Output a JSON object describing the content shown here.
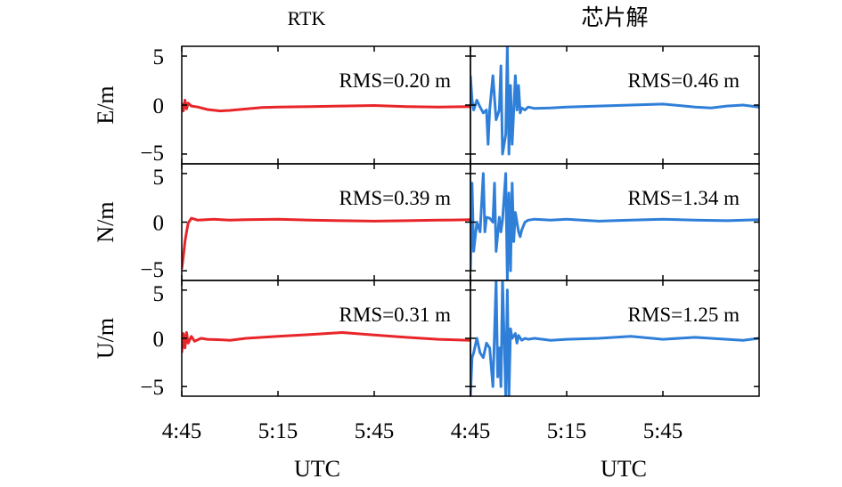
{
  "chart_data": {
    "type": "line",
    "columns": [
      {
        "title": "RTK",
        "xlabel": "UTC",
        "color": "#e8262a"
      },
      {
        "title": "芯片解",
        "xlabel": "UTC",
        "color": "#2f7fd9"
      }
    ],
    "rows": [
      {
        "ylabel": "E/m"
      },
      {
        "ylabel": "N/m"
      },
      {
        "ylabel": "U/m"
      }
    ],
    "x_ticks": [
      "4:45",
      "5:15",
      "5:45"
    ],
    "x_tick_values": [
      0,
      30,
      60
    ],
    "xlim": [
      0,
      90
    ],
    "ylim": [
      -6,
      6
    ],
    "y_ticks": [
      5,
      0,
      -5
    ],
    "y_tick_labels": [
      "5",
      "0",
      "−5"
    ],
    "panels": [
      {
        "row": 0,
        "col": 0,
        "rms_label": "RMS=0.20 m",
        "x": [
          0,
          0.5,
          1,
          1.5,
          2,
          3,
          5,
          8,
          12,
          15,
          20,
          25,
          30,
          40,
          50,
          60,
          70,
          80,
          90
        ],
        "y": [
          0.2,
          -0.6,
          0.5,
          -0.4,
          0.2,
          -0.1,
          -0.2,
          -0.45,
          -0.6,
          -0.55,
          -0.4,
          -0.25,
          -0.2,
          -0.15,
          -0.1,
          -0.05,
          -0.15,
          -0.2,
          -0.15
        ]
      },
      {
        "row": 0,
        "col": 1,
        "rms_label": "RMS=0.46 m",
        "x": [
          0,
          0.5,
          1,
          2,
          3,
          4,
          5,
          5.5,
          6,
          7,
          8,
          9,
          9.5,
          10,
          11,
          11.5,
          12,
          12.5,
          13,
          14,
          14.5,
          15,
          15.5,
          16,
          17,
          18,
          20,
          25,
          30,
          40,
          50,
          60,
          70,
          75,
          80,
          85,
          90
        ],
        "y": [
          3,
          0.5,
          -0.5,
          0.5,
          -0.2,
          -0.8,
          -0.5,
          -4,
          -0.5,
          3,
          -1.5,
          -0.5,
          4,
          -5,
          -3,
          6,
          -5,
          2,
          -4,
          3,
          -0.5,
          2,
          -0.8,
          -0.3,
          -0.5,
          -0.2,
          -0.35,
          -0.3,
          -0.2,
          -0.1,
          0,
          0.1,
          -0.2,
          -0.3,
          -0.1,
          0.0,
          -0.2
        ]
      },
      {
        "row": 1,
        "col": 0,
        "rms_label": "RMS=0.39 m",
        "x": [
          0,
          0.5,
          1,
          1.5,
          2,
          3,
          5,
          10,
          15,
          20,
          30,
          40,
          50,
          60,
          70,
          80,
          90
        ],
        "y": [
          -4.8,
          -3.5,
          -2,
          -1,
          -0.1,
          0.4,
          0.2,
          0.3,
          0.2,
          0.25,
          0.3,
          0.2,
          0.15,
          0.1,
          0.15,
          0.2,
          0.25
        ]
      },
      {
        "row": 1,
        "col": 1,
        "rms_label": "RMS=1.34 m",
        "x": [
          0,
          0.5,
          1,
          2,
          3,
          4,
          4.5,
          5,
          6,
          7,
          7.5,
          8,
          9,
          9.5,
          10,
          11,
          11.5,
          12,
          12.5,
          13,
          13.5,
          14,
          15,
          15.5,
          16,
          17,
          18,
          20,
          25,
          30,
          40,
          50,
          60,
          70,
          80,
          90
        ],
        "y": [
          -5,
          4,
          -3,
          0,
          -1,
          5,
          -1,
          0.5,
          0.4,
          0,
          4,
          -3,
          0.5,
          -1,
          0.2,
          5,
          -6,
          3,
          -5,
          4,
          -2,
          1,
          -1,
          -1.5,
          -0.8,
          0,
          0.2,
          0.3,
          0.2,
          0.3,
          0.1,
          0.2,
          0.3,
          0.2,
          0.15,
          0.25
        ]
      },
      {
        "row": 2,
        "col": 0,
        "rms_label": "RMS=0.31 m",
        "x": [
          0,
          0.5,
          1,
          1.5,
          2,
          3,
          4,
          6,
          8,
          12,
          15,
          20,
          25,
          30,
          40,
          45,
          50,
          60,
          70,
          80,
          90
        ],
        "y": [
          -1.5,
          0.5,
          -1,
          0.6,
          -0.5,
          0.2,
          -0.3,
          0,
          -0.1,
          -0.15,
          -0.2,
          0,
          0.1,
          0.2,
          0.4,
          0.5,
          0.6,
          0.35,
          0.1,
          -0.1,
          -0.2
        ]
      },
      {
        "row": 2,
        "col": 1,
        "rms_label": "RMS=1.25 m",
        "x": [
          0,
          0.5,
          1,
          2,
          3,
          4,
          5,
          6,
          7,
          8,
          8.5,
          9,
          9.5,
          10,
          11,
          11.5,
          12,
          12.5,
          13,
          14,
          14.5,
          15,
          16,
          17,
          18,
          20,
          25,
          30,
          40,
          45,
          50,
          60,
          70,
          80,
          85,
          90
        ],
        "y": [
          -6,
          -2,
          -1.5,
          0,
          -1.5,
          -2,
          -0.5,
          -1,
          -5,
          6,
          -4,
          -1,
          -5,
          6,
          -6,
          5,
          -6,
          1,
          0,
          0.5,
          -0.5,
          0.3,
          -0.2,
          0,
          -0.1,
          0,
          -0.2,
          -0.1,
          0,
          0.1,
          0.2,
          -0.1,
          0.1,
          -0.1,
          -0.2,
          0
        ]
      }
    ]
  }
}
